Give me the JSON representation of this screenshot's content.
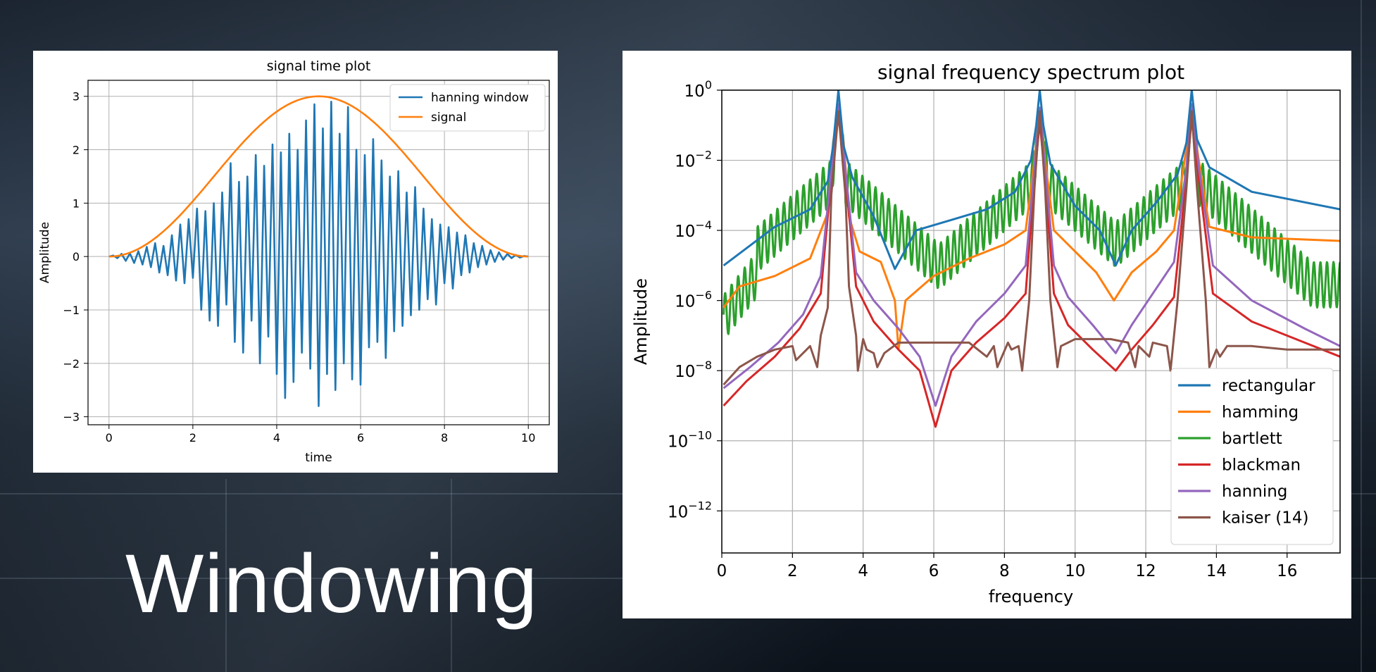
{
  "slide": {
    "title": "Windowing"
  },
  "chart_data": [
    {
      "type": "line",
      "title": "signal time plot",
      "xlabel": "time",
      "ylabel": "Amplitude",
      "xlim": [
        -0.5,
        10.5
      ],
      "ylim": [
        -3.15,
        3.3
      ],
      "xticks": [
        0,
        2,
        4,
        6,
        8,
        10
      ],
      "yticks": [
        -3,
        -2,
        -1,
        0,
        1,
        2,
        3
      ],
      "grid": true,
      "legend": "top-right",
      "series": [
        {
          "name": "hanning window",
          "color": "#1f77b4",
          "x": [
            0,
            0.1,
            0.2,
            0.3,
            0.4,
            0.5,
            0.6,
            0.7,
            0.8,
            0.9,
            1.0,
            1.1,
            1.2,
            1.3,
            1.4,
            1.5,
            1.6,
            1.7,
            1.8,
            1.9,
            2.0,
            2.1,
            2.2,
            2.3,
            2.4,
            2.5,
            2.6,
            2.7,
            2.8,
            2.9,
            3.0,
            3.1,
            3.2,
            3.3,
            3.4,
            3.5,
            3.6,
            3.7,
            3.8,
            3.9,
            4.0,
            4.1,
            4.2,
            4.3,
            4.4,
            4.5,
            4.6,
            4.7,
            4.8,
            4.9,
            5.0,
            5.1,
            5.2,
            5.3,
            5.4,
            5.5,
            5.6,
            5.7,
            5.8,
            5.9,
            6.0,
            6.1,
            6.2,
            6.3,
            6.4,
            6.5,
            6.6,
            6.7,
            6.8,
            6.9,
            7.0,
            7.1,
            7.2,
            7.3,
            7.4,
            7.5,
            7.6,
            7.7,
            7.8,
            7.9,
            8.0,
            8.1,
            8.2,
            8.3,
            8.4,
            8.5,
            8.6,
            8.7,
            8.8,
            8.9,
            9.0,
            9.1,
            9.2,
            9.3,
            9.4,
            9.5,
            9.6,
            9.7,
            9.8,
            9.9,
            10.0
          ],
          "y": [
            0,
            0.02,
            -0.03,
            0.05,
            -0.08,
            0.06,
            -0.12,
            0.1,
            -0.15,
            0.18,
            -0.2,
            0.25,
            -0.3,
            0.2,
            -0.35,
            0.4,
            -0.45,
            0.6,
            -0.5,
            0.7,
            -0.4,
            0.9,
            -1.0,
            0.85,
            -1.2,
            1.0,
            -1.3,
            1.2,
            -0.9,
            1.75,
            -1.6,
            1.4,
            -1.8,
            1.5,
            -1.2,
            1.9,
            -2.0,
            1.7,
            -1.5,
            2.1,
            -2.2,
            1.95,
            -2.65,
            2.3,
            -2.35,
            2.0,
            -1.8,
            2.55,
            -2.1,
            2.85,
            -2.8,
            2.4,
            -2.2,
            2.9,
            -2.5,
            2.3,
            -2.0,
            2.8,
            -2.3,
            2.0,
            -2.4,
            1.9,
            -1.7,
            2.2,
            -1.6,
            1.8,
            -1.9,
            1.5,
            -1.4,
            1.6,
            -1.3,
            1.2,
            -1.1,
            1.3,
            -1.0,
            0.9,
            -0.8,
            0.7,
            -0.9,
            0.6,
            -0.5,
            0.55,
            -0.6,
            0.45,
            -0.35,
            0.4,
            -0.3,
            0.25,
            -0.2,
            0.2,
            -0.15,
            0.12,
            -0.1,
            0.08,
            -0.06,
            0.05,
            -0.03,
            0.03,
            -0.02,
            0.01,
            0
          ]
        },
        {
          "name": "signal",
          "color": "#ff7f0e",
          "function": "hann",
          "amplitude": 3,
          "x_start": 0,
          "x_end": 10
        }
      ]
    },
    {
      "type": "line",
      "title": "signal frequency spectrum plot",
      "xlabel": "frequency",
      "ylabel": "Amplitude",
      "yscale": "log",
      "xlim": [
        0,
        17.5
      ],
      "ylim_exp": [
        -13.2,
        0
      ],
      "xticks": [
        0,
        2,
        4,
        6,
        8,
        10,
        12,
        14,
        16
      ],
      "yticks": [
        "10^0",
        "10^-2",
        "10^-4",
        "10^-6",
        "10^-8",
        "10^-10",
        "10^-12"
      ],
      "ytick_labels": [
        {
          "base": "10",
          "exp": "0"
        },
        {
          "base": "10",
          "exp": "−2"
        },
        {
          "base": "10",
          "exp": "−4"
        },
        {
          "base": "10",
          "exp": "−6"
        },
        {
          "base": "10",
          "exp": "−8"
        },
        {
          "base": "10",
          "exp": "−10"
        },
        {
          "base": "10",
          "exp": "−12"
        }
      ],
      "ytick_exps": [
        0,
        -2,
        -4,
        -6,
        -8,
        -10,
        -12
      ],
      "grid": true,
      "legend": "bottom-right",
      "series": [
        {
          "name": "rectangular",
          "color": "#1f77b4",
          "x": [
            0.05,
            1.5,
            2.5,
            3.0,
            3.15,
            3.3,
            3.45,
            3.7,
            4.3,
            4.9,
            5.5,
            6.5,
            7.5,
            8.3,
            8.75,
            8.9,
            9.0,
            9.1,
            9.3,
            10.0,
            10.7,
            11.15,
            11.6,
            12.3,
            12.9,
            13.15,
            13.3,
            13.45,
            13.8,
            15.0,
            17.5
          ],
          "y_exp": [
            -5.0,
            -3.9,
            -3.4,
            -2.6,
            -1.6,
            0,
            -1.6,
            -2.5,
            -3.6,
            -5.1,
            -4.0,
            -3.7,
            -3.4,
            -2.9,
            -2.0,
            -1.0,
            0,
            -1.0,
            -2.1,
            -3.3,
            -4.0,
            -5.0,
            -4.0,
            -3.2,
            -2.4,
            -1.5,
            0,
            -1.4,
            -2.2,
            -2.9,
            -3.4
          ]
        },
        {
          "name": "hamming",
          "color": "#ff7f0e",
          "x": [
            0.05,
            0.5,
            1.5,
            2.5,
            3.0,
            3.15,
            3.3,
            3.45,
            3.6,
            3.9,
            4.5,
            4.9,
            5.0,
            5.2,
            6.0,
            7.0,
            8.0,
            8.6,
            8.85,
            9.0,
            9.15,
            9.4,
            10.0,
            10.6,
            11.1,
            11.6,
            12.3,
            12.8,
            13.1,
            13.3,
            13.5,
            13.8,
            15.0,
            17.5
          ],
          "y_exp": [
            -6.2,
            -5.6,
            -5.3,
            -4.8,
            -3.5,
            -1.5,
            -0.5,
            -1.5,
            -3.6,
            -4.6,
            -4.9,
            -6.0,
            -7.4,
            -6.0,
            -5.3,
            -4.8,
            -4.4,
            -4.0,
            -2.0,
            -0.6,
            -2.0,
            -4.0,
            -4.6,
            -5.2,
            -6.0,
            -5.2,
            -4.6,
            -4.0,
            -2.0,
            -0.6,
            -2.0,
            -3.9,
            -4.2,
            -4.3
          ]
        },
        {
          "name": "bartlett",
          "color": "#2ca02c",
          "function": "bartlett-ripple"
        },
        {
          "name": "blackman",
          "color": "#d62728",
          "x": [
            0.05,
            0.7,
            1.5,
            2.2,
            2.8,
            3.1,
            3.3,
            3.5,
            3.8,
            4.3,
            5.0,
            5.6,
            6.05,
            6.5,
            7.2,
            8.0,
            8.6,
            8.85,
            9.0,
            9.15,
            9.4,
            9.8,
            10.5,
            11.15,
            11.6,
            12.2,
            12.8,
            13.15,
            13.3,
            13.5,
            13.9,
            15.0,
            16.5,
            17.5
          ],
          "y_exp": [
            -9.0,
            -8.3,
            -7.6,
            -6.8,
            -5.8,
            -2.5,
            -0.7,
            -2.5,
            -5.6,
            -6.6,
            -7.4,
            -8.0,
            -9.6,
            -8.0,
            -7.2,
            -6.5,
            -5.8,
            -2.5,
            -0.9,
            -2.5,
            -5.8,
            -6.7,
            -7.4,
            -8.0,
            -7.4,
            -6.7,
            -5.9,
            -2.5,
            -0.8,
            -2.5,
            -5.8,
            -6.6,
            -7.2,
            -7.6
          ]
        },
        {
          "name": "hanning",
          "color": "#9467bd",
          "x": [
            0.05,
            0.8,
            1.6,
            2.3,
            2.8,
            3.1,
            3.3,
            3.5,
            3.8,
            4.3,
            5.0,
            5.6,
            6.05,
            6.5,
            7.2,
            8.0,
            8.6,
            8.85,
            9.0,
            9.15,
            9.4,
            9.8,
            10.5,
            11.15,
            11.6,
            12.2,
            12.8,
            13.15,
            13.3,
            13.5,
            13.9,
            15.0,
            16.5,
            17.5
          ],
          "y_exp": [
            -8.5,
            -7.9,
            -7.2,
            -6.4,
            -5.3,
            -2.3,
            -0.4,
            -2.3,
            -5.2,
            -6.0,
            -6.8,
            -7.6,
            -9.0,
            -7.6,
            -6.6,
            -5.8,
            -5.0,
            -2.2,
            -0.5,
            -2.2,
            -5.0,
            -5.9,
            -6.7,
            -7.5,
            -6.7,
            -5.8,
            -4.9,
            -2.2,
            -0.4,
            -2.2,
            -5.0,
            -6.0,
            -6.8,
            -7.3
          ]
        },
        {
          "name": "kaiser (14)",
          "color": "#8c564b",
          "x": [
            0.05,
            0.5,
            1.0,
            1.5,
            2.0,
            2.1,
            2.3,
            2.5,
            2.7,
            2.8,
            3.0,
            3.1,
            3.3,
            3.5,
            3.6,
            3.8,
            3.85,
            4.0,
            4.1,
            4.3,
            4.4,
            4.6,
            5.0,
            6.0,
            7.0,
            7.5,
            7.7,
            7.8,
            8.1,
            8.2,
            8.4,
            8.5,
            8.7,
            8.85,
            9.0,
            9.15,
            9.3,
            9.5,
            9.6,
            9.8,
            10.0,
            10.5,
            11.0,
            11.5,
            11.7,
            11.8,
            12.1,
            12.2,
            12.6,
            12.7,
            12.9,
            13.15,
            13.3,
            13.45,
            13.7,
            13.8,
            14.0,
            14.1,
            14.3,
            15.0,
            16.0,
            17.5
          ],
          "y_exp": [
            -8.4,
            -7.9,
            -7.6,
            -7.4,
            -7.3,
            -7.7,
            -7.5,
            -7.3,
            -7.9,
            -7.0,
            -6.2,
            -3.0,
            -0.6,
            -3.0,
            -5.6,
            -7.0,
            -8.0,
            -7.1,
            -7.4,
            -7.5,
            -7.9,
            -7.5,
            -7.2,
            -7.2,
            -7.2,
            -7.6,
            -7.3,
            -7.9,
            -7.2,
            -7.4,
            -7.3,
            -8.0,
            -6.0,
            -2.8,
            -0.6,
            -2.8,
            -6.0,
            -7.9,
            -7.3,
            -7.2,
            -7.1,
            -7.1,
            -7.1,
            -7.2,
            -7.9,
            -7.3,
            -7.6,
            -7.2,
            -7.3,
            -8.0,
            -6.0,
            -2.8,
            -0.6,
            -2.8,
            -6.0,
            -7.9,
            -7.4,
            -7.6,
            -7.3,
            -7.3,
            -7.4,
            -7.4
          ]
        }
      ]
    }
  ]
}
